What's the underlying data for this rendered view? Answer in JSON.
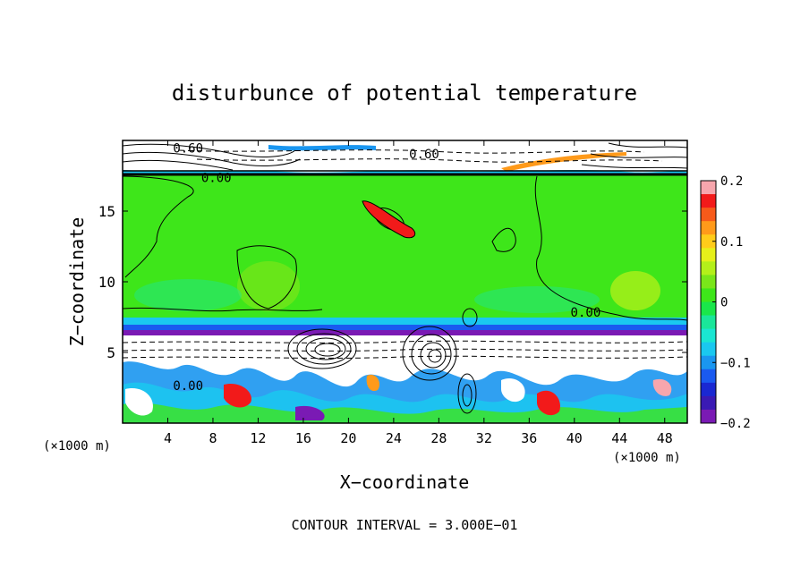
{
  "chart_data": {
    "type": "heatmap",
    "title": "disturbunce of potential temperature",
    "xlabel": "X−coordinate",
    "ylabel": "Z−coordinate",
    "x_unit_left": "(×1000 m)",
    "x_unit_right": "(×1000 m)",
    "footer": "CONTOUR INTERVAL = 3.000E−01",
    "xlim": [
      0,
      50
    ],
    "ylim": [
      0,
      20
    ],
    "x_ticks": [
      4,
      8,
      12,
      16,
      20,
      24,
      28,
      32,
      36,
      40,
      44,
      48
    ],
    "y_ticks": [
      5,
      10,
      15
    ],
    "colorbar": {
      "min": -0.2,
      "max": 0.2,
      "tick_labels": [
        "0.2",
        "0.1",
        "0",
        "−0.1",
        "−0.2"
      ],
      "tick_values": [
        0.2,
        0.1,
        0,
        -0.1,
        -0.2
      ],
      "colors": [
        "#f7a6ad",
        "#f21a1a",
        "#f75a1a",
        "#ff9a1a",
        "#ffcc1a",
        "#e6f01a",
        "#b4f01a",
        "#7ae61a",
        "#3ee61a",
        "#1ae64a",
        "#1ae69a",
        "#1ae6d2",
        "#1ac8f0",
        "#1a96f0",
        "#1a5af0",
        "#1a28d2",
        "#3a1ab4",
        "#7a1ab4"
      ]
    },
    "contour_labels": [
      {
        "text": "0.60",
        "x": 5.8,
        "z": 19.4
      },
      {
        "text": "0.60",
        "x": 26.7,
        "z": 19.0
      },
      {
        "text": "0.00",
        "x": 8.3,
        "z": 17.3
      },
      {
        "text": "0.00",
        "x": 41.0,
        "z": 7.8
      },
      {
        "text": "0.00",
        "x": 5.8,
        "z": 2.6
      }
    ],
    "regions": {
      "stratosphere_z": [
        17.5,
        20
      ],
      "inversion_z": [
        5.6,
        6.4
      ],
      "background": "near-zero disturbance (green) above 6 km, strong mixed anomalies (white/blue/red) below 6 km"
    }
  }
}
